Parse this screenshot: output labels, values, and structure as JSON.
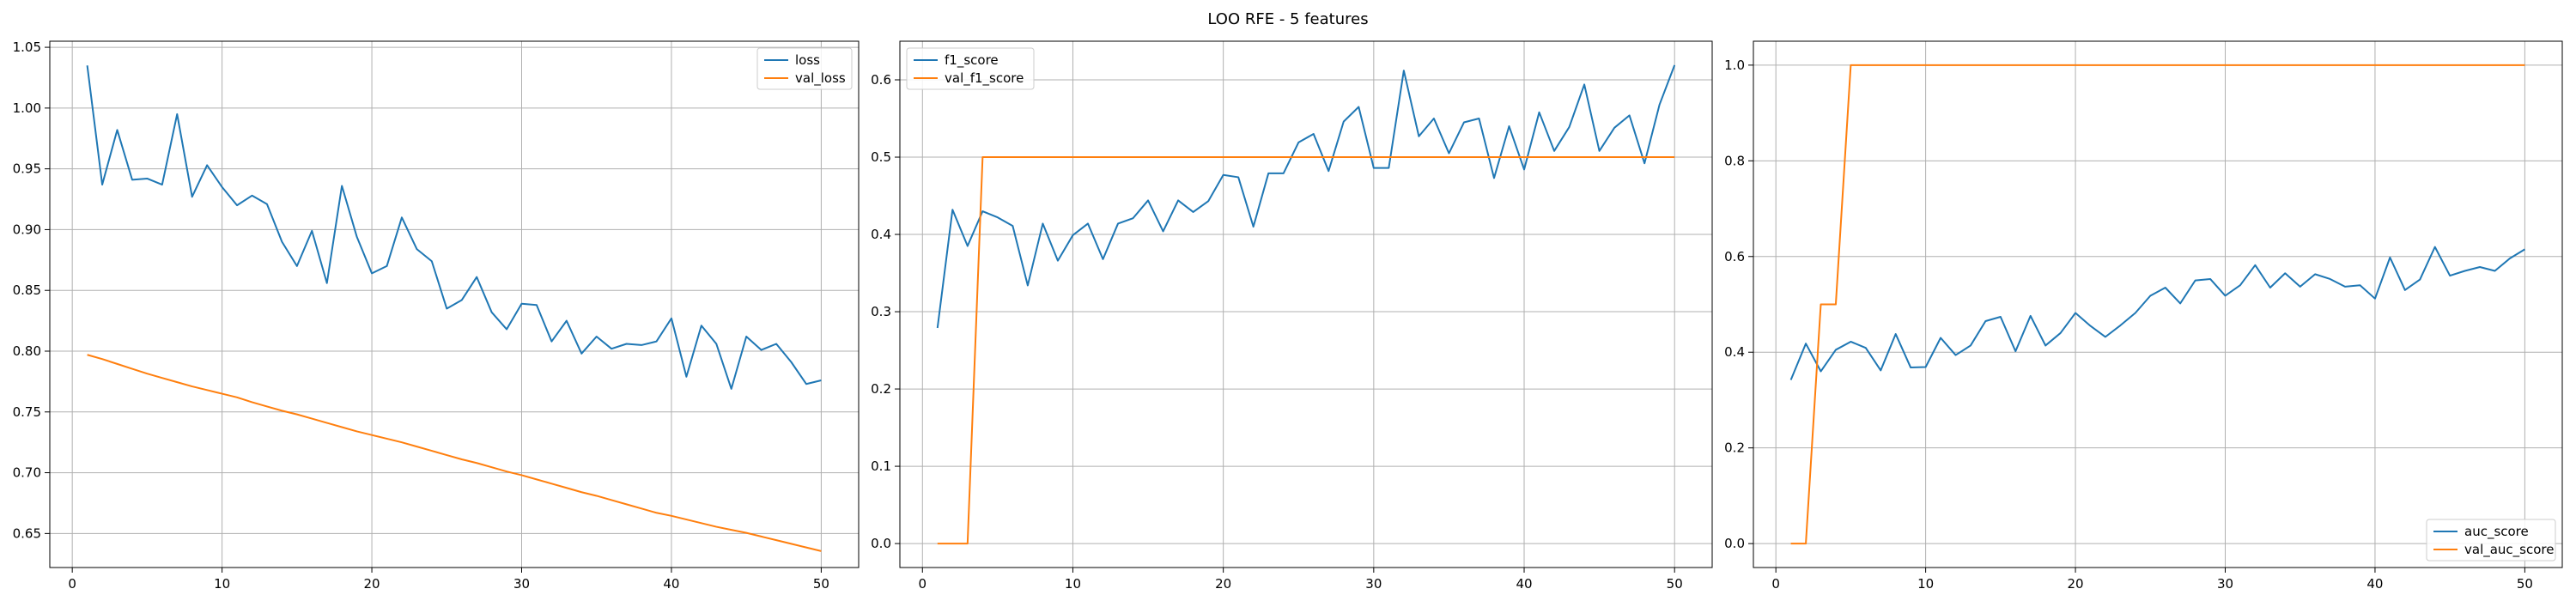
{
  "figure": {
    "title": "LOO RFE - 5 features"
  },
  "colors": {
    "series_blue": "#1f77b4",
    "series_orange": "#ff7f0e",
    "grid": "#b0b0b0",
    "axes": "#000000"
  },
  "chart_data": [
    {
      "type": "line",
      "grid": true,
      "legend_position": "top-right",
      "xlim": [
        -1.5,
        52.5
      ],
      "ylim": [
        0.622,
        1.055
      ],
      "xticks": [
        0,
        10,
        20,
        30,
        40,
        50
      ],
      "yticks": [
        0.65,
        0.7,
        0.75,
        0.8,
        0.85,
        0.9,
        0.95,
        1.0,
        1.05
      ],
      "x": [
        1,
        2,
        3,
        4,
        5,
        6,
        7,
        8,
        9,
        10,
        11,
        12,
        13,
        14,
        15,
        16,
        17,
        18,
        19,
        20,
        21,
        22,
        23,
        24,
        25,
        26,
        27,
        28,
        29,
        30,
        31,
        32,
        33,
        34,
        35,
        36,
        37,
        38,
        39,
        40,
        41,
        42,
        43,
        44,
        45,
        46,
        47,
        48,
        49,
        50
      ],
      "series": [
        {
          "name": "loss",
          "color": "#1f77b4",
          "values": [
            1.035,
            0.937,
            0.982,
            0.941,
            0.942,
            0.937,
            0.995,
            0.927,
            0.953,
            0.935,
            0.92,
            0.928,
            0.921,
            0.89,
            0.87,
            0.899,
            0.856,
            0.936,
            0.894,
            0.864,
            0.87,
            0.91,
            0.884,
            0.874,
            0.835,
            0.842,
            0.861,
            0.832,
            0.818,
            0.839,
            0.838,
            0.808,
            0.825,
            0.798,
            0.812,
            0.802,
            0.806,
            0.805,
            0.808,
            0.827,
            0.779,
            0.821,
            0.806,
            0.769,
            0.812,
            0.801,
            0.806,
            0.791,
            0.773,
            0.776
          ]
        },
        {
          "name": "val_loss",
          "color": "#ff7f0e",
          "values": [
            0.797,
            0.7935,
            0.7895,
            0.7855,
            0.7815,
            0.778,
            0.7745,
            0.771,
            0.768,
            0.765,
            0.762,
            0.758,
            0.7545,
            0.751,
            0.748,
            0.7445,
            0.741,
            0.7375,
            0.734,
            0.731,
            0.728,
            0.725,
            0.7215,
            0.718,
            0.7145,
            0.711,
            0.708,
            0.7045,
            0.701,
            0.698,
            0.6945,
            0.691,
            0.6875,
            0.684,
            0.681,
            0.6775,
            0.674,
            0.6705,
            0.667,
            0.6645,
            0.6615,
            0.6585,
            0.6555,
            0.653,
            0.6505,
            0.6475,
            0.6445,
            0.6415,
            0.6385,
            0.6355
          ]
        }
      ]
    },
    {
      "type": "line",
      "grid": true,
      "legend_position": "top-left",
      "xlim": [
        -1.5,
        52.5
      ],
      "ylim": [
        -0.031,
        0.65
      ],
      "xticks": [
        0,
        10,
        20,
        30,
        40,
        50
      ],
      "yticks": [
        0.0,
        0.1,
        0.2,
        0.3,
        0.4,
        0.5,
        0.6
      ],
      "x": [
        1,
        2,
        3,
        4,
        5,
        6,
        7,
        8,
        9,
        10,
        11,
        12,
        13,
        14,
        15,
        16,
        17,
        18,
        19,
        20,
        21,
        22,
        23,
        24,
        25,
        26,
        27,
        28,
        29,
        30,
        31,
        32,
        33,
        34,
        35,
        36,
        37,
        38,
        39,
        40,
        41,
        42,
        43,
        44,
        45,
        46,
        47,
        48,
        49,
        50
      ],
      "series": [
        {
          "name": "f1_score",
          "color": "#1f77b4",
          "values": [
            0.279,
            0.432,
            0.385,
            0.43,
            0.422,
            0.411,
            0.334,
            0.414,
            0.366,
            0.399,
            0.414,
            0.368,
            0.414,
            0.421,
            0.444,
            0.404,
            0.444,
            0.429,
            0.443,
            0.477,
            0.474,
            0.41,
            0.479,
            0.479,
            0.519,
            0.53,
            0.482,
            0.546,
            0.565,
            0.486,
            0.486,
            0.612,
            0.527,
            0.55,
            0.505,
            0.545,
            0.55,
            0.473,
            0.54,
            0.484,
            0.558,
            0.508,
            0.539,
            0.594,
            0.508,
            0.538,
            0.554,
            0.492,
            0.568,
            0.619
          ]
        },
        {
          "name": "val_f1_score",
          "color": "#ff7f0e",
          "values": [
            0.0,
            0.0,
            0.0,
            0.5,
            0.5,
            0.5,
            0.5,
            0.5,
            0.5,
            0.5,
            0.5,
            0.5,
            0.5,
            0.5,
            0.5,
            0.5,
            0.5,
            0.5,
            0.5,
            0.5,
            0.5,
            0.5,
            0.5,
            0.5,
            0.5,
            0.5,
            0.5,
            0.5,
            0.5,
            0.5,
            0.5,
            0.5,
            0.5,
            0.5,
            0.5,
            0.5,
            0.5,
            0.5,
            0.5,
            0.5,
            0.5,
            0.5,
            0.5,
            0.5,
            0.5,
            0.5,
            0.5,
            0.5,
            0.5,
            0.5
          ]
        }
      ]
    },
    {
      "type": "line",
      "grid": true,
      "legend_position": "bottom-right",
      "xlim": [
        -1.5,
        52.5
      ],
      "ylim": [
        -0.05,
        1.05
      ],
      "xticks": [
        0,
        10,
        20,
        30,
        40,
        50
      ],
      "yticks": [
        0.0,
        0.2,
        0.4,
        0.6,
        0.8,
        1.0
      ],
      "x": [
        1,
        2,
        3,
        4,
        5,
        6,
        7,
        8,
        9,
        10,
        11,
        12,
        13,
        14,
        15,
        16,
        17,
        18,
        19,
        20,
        21,
        22,
        23,
        24,
        25,
        26,
        27,
        28,
        29,
        30,
        31,
        32,
        33,
        34,
        35,
        36,
        37,
        38,
        39,
        40,
        41,
        42,
        43,
        44,
        45,
        46,
        47,
        48,
        49,
        50
      ],
      "series": [
        {
          "name": "auc_score",
          "color": "#1f77b4",
          "values": [
            0.342,
            0.418,
            0.36,
            0.405,
            0.422,
            0.409,
            0.362,
            0.438,
            0.368,
            0.369,
            0.43,
            0.394,
            0.414,
            0.465,
            0.474,
            0.402,
            0.476,
            0.414,
            0.44,
            0.482,
            0.455,
            0.432,
            0.456,
            0.482,
            0.518,
            0.535,
            0.502,
            0.55,
            0.553,
            0.518,
            0.54,
            0.582,
            0.535,
            0.565,
            0.537,
            0.563,
            0.553,
            0.537,
            0.54,
            0.512,
            0.598,
            0.53,
            0.552,
            0.62,
            0.56,
            0.57,
            0.578,
            0.57,
            0.596,
            0.615
          ]
        },
        {
          "name": "val_auc_score",
          "color": "#ff7f0e",
          "values": [
            0.0,
            0.0,
            0.5,
            0.5,
            1.0,
            1.0,
            1.0,
            1.0,
            1.0,
            1.0,
            1.0,
            1.0,
            1.0,
            1.0,
            1.0,
            1.0,
            1.0,
            1.0,
            1.0,
            1.0,
            1.0,
            1.0,
            1.0,
            1.0,
            1.0,
            1.0,
            1.0,
            1.0,
            1.0,
            1.0,
            1.0,
            1.0,
            1.0,
            1.0,
            1.0,
            1.0,
            1.0,
            1.0,
            1.0,
            1.0,
            1.0,
            1.0,
            1.0,
            1.0,
            1.0,
            1.0,
            1.0,
            1.0,
            1.0,
            1.0
          ]
        }
      ]
    }
  ]
}
